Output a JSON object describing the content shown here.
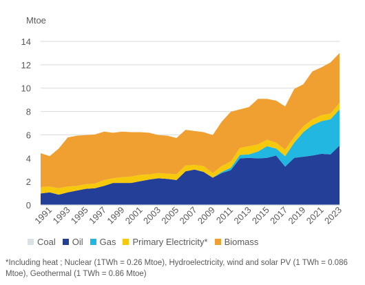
{
  "chart_data": {
    "type": "area",
    "stacked": true,
    "unit": "Mtoe",
    "ylim": [
      0,
      14
    ],
    "yticks": [
      0,
      2,
      4,
      6,
      8,
      10,
      12,
      14
    ],
    "grid": true,
    "legend_position": "bottom",
    "x": [
      1990,
      1991,
      1992,
      1993,
      1994,
      1995,
      1996,
      1997,
      1998,
      1999,
      2000,
      2001,
      2002,
      2003,
      2004,
      2005,
      2006,
      2007,
      2008,
      2009,
      2010,
      2011,
      2012,
      2013,
      2014,
      2015,
      2016,
      2017,
      2018,
      2019,
      2020,
      2021,
      2022,
      2023
    ],
    "xtick_labels": [
      "1991",
      "1993",
      "1995",
      "1997",
      "1999",
      "2001",
      "2003",
      "2005",
      "2007",
      "2009",
      "2011",
      "2013",
      "2015",
      "2017",
      "2019",
      "2021",
      "2023"
    ],
    "series": [
      {
        "name": "Coal",
        "color": "#d9e3e6",
        "values": [
          0.03,
          0.03,
          0.03,
          0.03,
          0.03,
          0.03,
          0.03,
          0.03,
          0.03,
          0.03,
          0.03,
          0.03,
          0.03,
          0.03,
          0.03,
          0.03,
          0.03,
          0.03,
          0.03,
          0.03,
          0.03,
          0.03,
          0.03,
          0.03,
          0.03,
          0.03,
          0.03,
          0.03,
          0.03,
          0.03,
          0.03,
          0.03,
          0.03,
          0.03
        ]
      },
      {
        "name": "Oil",
        "color": "#243f97",
        "values": [
          0.95,
          1.05,
          0.85,
          1.05,
          1.2,
          1.35,
          1.4,
          1.6,
          1.85,
          1.85,
          1.85,
          2.0,
          2.15,
          2.25,
          2.2,
          2.1,
          2.85,
          3.0,
          2.8,
          2.3,
          2.7,
          2.95,
          3.95,
          4.0,
          3.95,
          4.0,
          4.2,
          3.25,
          4.0,
          4.1,
          4.2,
          4.35,
          4.3,
          5.05
        ]
      },
      {
        "name": "Gas",
        "color": "#22b7e0",
        "values": [
          0,
          0,
          0,
          0,
          0,
          0,
          0,
          0,
          0,
          0,
          0,
          0,
          0,
          0,
          0,
          0,
          0,
          0,
          0,
          0,
          0.1,
          0.2,
          0.3,
          0.3,
          0.6,
          1.0,
          0.6,
          0.9,
          1.3,
          2.1,
          2.6,
          2.8,
          3.0,
          3.1
        ]
      },
      {
        "name": "Primary Electricity*",
        "color": "#f7c90c",
        "values": [
          0.55,
          0.5,
          0.55,
          0.5,
          0.4,
          0.4,
          0.4,
          0.5,
          0.4,
          0.5,
          0.55,
          0.55,
          0.45,
          0.45,
          0.45,
          0.5,
          0.5,
          0.4,
          0.5,
          0.4,
          0.5,
          0.55,
          0.6,
          0.7,
          0.6,
          0.55,
          0.5,
          0.55,
          0.5,
          0.5,
          0.5,
          0.5,
          0.5,
          0.55
        ]
      },
      {
        "name": "Biomass",
        "color": "#f0a030",
        "values": [
          2.9,
          2.6,
          3.4,
          4.2,
          4.3,
          4.2,
          4.2,
          4.15,
          3.9,
          3.9,
          3.8,
          3.65,
          3.55,
          3.25,
          3.25,
          3.1,
          3.05,
          2.9,
          2.9,
          3.25,
          3.8,
          4.25,
          3.3,
          3.35,
          3.9,
          3.5,
          3.6,
          3.7,
          4.1,
          3.6,
          4.1,
          4.1,
          4.37,
          4.27
        ]
      }
    ]
  },
  "legend": {
    "items": [
      {
        "label": "Coal",
        "color": "#d9e3e6"
      },
      {
        "label": "Oil",
        "color": "#243f97"
      },
      {
        "label": "Gas",
        "color": "#22b7e0"
      },
      {
        "label": "Primary Electricity*",
        "color": "#f7c90c"
      },
      {
        "label": "Biomass",
        "color": "#f0a030"
      }
    ]
  },
  "note": "*Including heat ; Nuclear (1TWh = 0.26 Mtoe), Hydroelectricity, wind and solar PV (1 TWh = 0.086  Mtoe), Geothermal (1 TWh = 0.86  Mtoe)"
}
